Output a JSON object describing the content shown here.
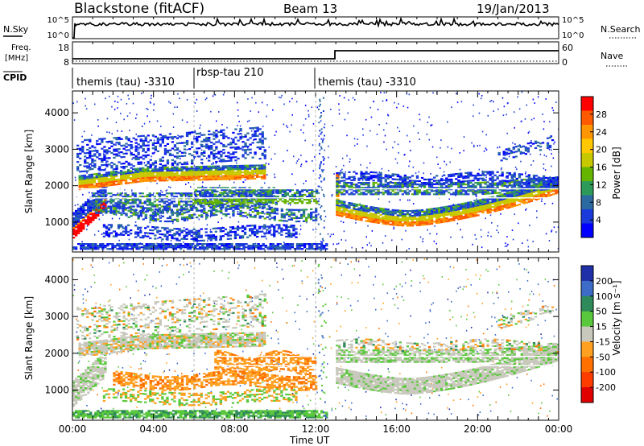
{
  "header": {
    "station": "Blackstone (fitACF)",
    "beam": "Beam 13",
    "date": "19/Jan/2013"
  },
  "left_labels": {
    "nsky": "N.Sky",
    "freq_line1": "Freq.",
    "freq_line2": "[MHz]",
    "cpid": "CPID"
  },
  "right_labels": {
    "nsearch": "N.Search",
    "nave": "Nave"
  },
  "noise_panel": {
    "left_ticks": [
      "10^5",
      "10^0"
    ],
    "right_ticks": [
      "10^5",
      "10^0"
    ]
  },
  "freq_panel": {
    "left_ticks": [
      "18",
      "8"
    ],
    "right_ticks": [
      "60",
      "0"
    ]
  },
  "cpid_panel": {
    "segments": [
      {
        "label": "themis (tau) -3310",
        "start": 0,
        "end": 6
      },
      {
        "label": "rbsp-tau 210",
        "start": 6,
        "end": 12.5
      },
      {
        "label": "themis (tau) -3310",
        "start": 12.5,
        "end": 24
      }
    ]
  },
  "power_colorbar": {
    "label": "Power [dB]",
    "ticks": [
      "28",
      "24",
      "20",
      "16",
      "12",
      "8",
      "4"
    ],
    "colors": [
      "#ff0000",
      "#ff5a00",
      "#ff9600",
      "#ffc800",
      "#c8c800",
      "#64b400",
      "#2e9a5a",
      "#2a6aa0",
      "#1a3adc",
      "#0000ff"
    ]
  },
  "velocity_colorbar": {
    "label": "Velocity [m s⁻¹]",
    "ticks": [
      "200",
      "100",
      "50",
      "15",
      "-15",
      "-50",
      "-100",
      "-200"
    ],
    "colors": [
      "#1f2fa8",
      "#3c6cc8",
      "#2e8a5a",
      "#5ac83c",
      "#c8c8bc",
      "#ffa020",
      "#ff7000",
      "#ff3c00",
      "#e00000"
    ]
  },
  "chart_data": [
    {
      "type": "heatmap",
      "title": "Power",
      "xlabel": "Time UT",
      "ylabel": "Slant Range [km]",
      "x_ticks": [
        "00:00",
        "04:00",
        "08:00",
        "12:00",
        "16:00",
        "20:00",
        "00:00"
      ],
      "y_ticks": [
        1000,
        2000,
        3000,
        4000
      ],
      "xlim": [
        0,
        24
      ],
      "ylim": [
        180,
        4600
      ],
      "colorbar": "Power [dB]",
      "colorbar_range": [
        0,
        31
      ]
    },
    {
      "type": "heatmap",
      "title": "Velocity",
      "xlabel": "Time UT",
      "ylabel": "Slant Range [km]",
      "x_ticks": [
        "00:00",
        "04:00",
        "08:00",
        "12:00",
        "16:00",
        "20:00",
        "00:00"
      ],
      "y_ticks": [
        1000,
        2000,
        3000,
        4000
      ],
      "xlim": [
        0,
        24
      ],
      "ylim": [
        180,
        4600
      ],
      "colorbar": "Velocity [m s⁻¹]",
      "colorbar_range": [
        -250,
        250
      ]
    }
  ],
  "time_axis": {
    "label": "Time UT",
    "ticks": [
      "00:00",
      "04:00",
      "08:00",
      "12:00",
      "16:00",
      "20:00",
      "00:00"
    ]
  },
  "power_panel": {
    "ylabel": "Slant Range [km]",
    "y_ticks": [
      "1000",
      "2000",
      "3000",
      "4000"
    ]
  },
  "velocity_panel": {
    "ylabel": "Slant Range [km]",
    "y_ticks": [
      "1000",
      "2000",
      "3000",
      "4000"
    ]
  }
}
